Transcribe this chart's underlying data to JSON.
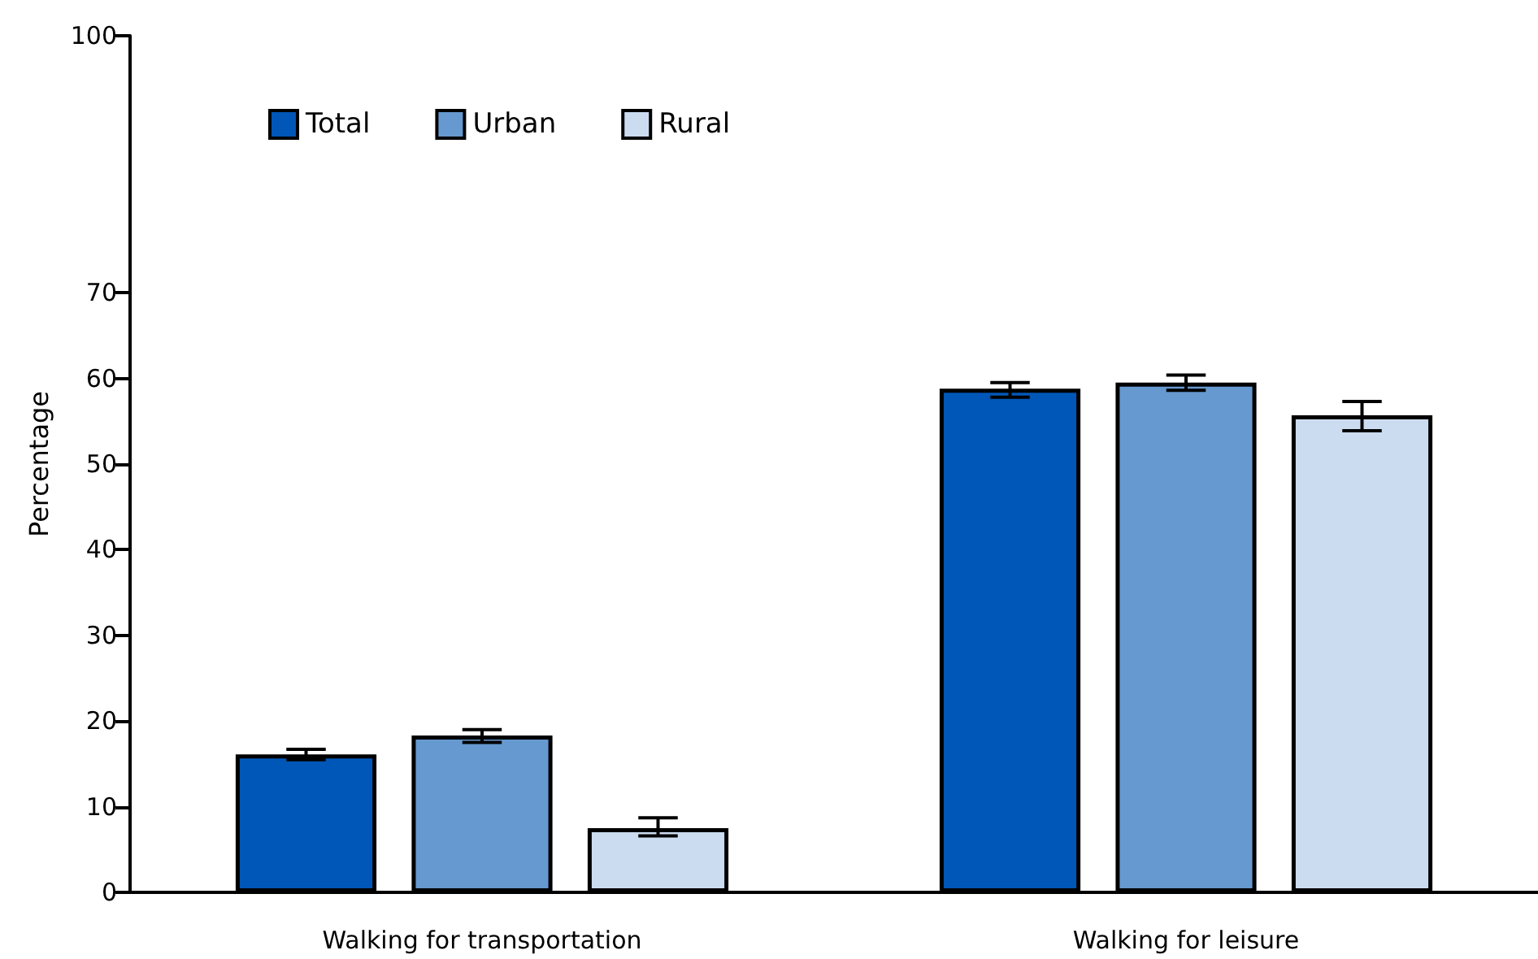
{
  "chart_data": {
    "type": "bar",
    "ylabel": "Percentage",
    "categories": [
      "Walking for transportation",
      "Walking for leisure"
    ],
    "series": [
      {
        "name": "Total",
        "color": "#0057b7",
        "values": [
          16.1,
          58.8
        ],
        "errors": [
          [
            15.5,
            16.7
          ],
          [
            57.8,
            59.5
          ]
        ]
      },
      {
        "name": "Urban",
        "color": "#6699d0",
        "values": [
          18.3,
          59.5
        ],
        "errors": [
          [
            17.5,
            19.0
          ],
          [
            58.6,
            60.4
          ]
        ]
      },
      {
        "name": "Rural",
        "color": "#ccdcf0",
        "values": [
          7.5,
          55.7
        ],
        "errors": [
          [
            6.6,
            8.7
          ],
          [
            53.9,
            57.3
          ]
        ]
      }
    ],
    "ylim": [
      0,
      100
    ],
    "yticks": [
      0,
      10,
      20,
      30,
      40,
      50,
      60,
      70,
      100
    ],
    "grid": false,
    "legend": "top left"
  }
}
